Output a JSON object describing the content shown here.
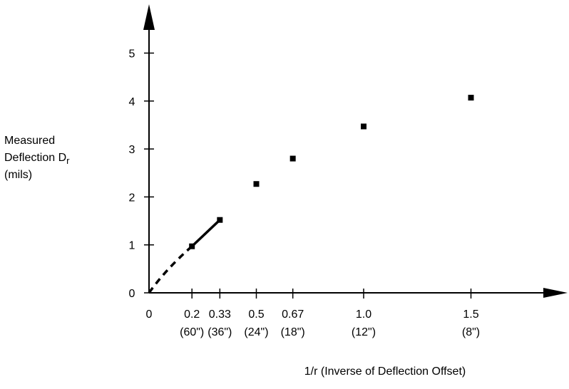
{
  "chart_data": {
    "type": "scatter",
    "title": "",
    "xlabel": "1/r (Inverse of Deflection Offset)",
    "ylabel": {
      "line1": "Measured",
      "line2_main": "Deflection D",
      "line2_sub": "r",
      "line3": "(mils)"
    },
    "xlim": [
      0,
      1.95
    ],
    "ylim": [
      0,
      5.85
    ],
    "x_ticks": [
      {
        "value": 0,
        "label": "0",
        "sublabel": ""
      },
      {
        "value": 0.2,
        "label": "0.2",
        "sublabel": "(60\")"
      },
      {
        "value": 0.33,
        "label": "0.33",
        "sublabel": "(36\")"
      },
      {
        "value": 0.5,
        "label": "0.5",
        "sublabel": "(24\")"
      },
      {
        "value": 0.67,
        "label": "0.67",
        "sublabel": "(18\")"
      },
      {
        "value": 1.0,
        "label": "1.0",
        "sublabel": "(12\")"
      },
      {
        "value": 1.5,
        "label": "1.5",
        "sublabel": "(8\")"
      }
    ],
    "y_ticks": [
      {
        "value": 0,
        "label": "0"
      },
      {
        "value": 1,
        "label": "1"
      },
      {
        "value": 2,
        "label": "2"
      },
      {
        "value": 3,
        "label": "3"
      },
      {
        "value": 4,
        "label": "4"
      },
      {
        "value": 5,
        "label": "5"
      }
    ],
    "points": [
      {
        "x": 0.2,
        "y": 0.97
      },
      {
        "x": 0.33,
        "y": 1.52
      },
      {
        "x": 0.5,
        "y": 2.27
      },
      {
        "x": 0.67,
        "y": 2.8
      },
      {
        "x": 1.0,
        "y": 3.47
      },
      {
        "x": 1.5,
        "y": 4.07
      }
    ],
    "solid_line": [
      {
        "x": 0.2,
        "y": 0.97
      },
      {
        "x": 0.33,
        "y": 1.52
      }
    ],
    "dashed_curve": [
      {
        "x": 0.0,
        "y": 0.0
      },
      {
        "x": 0.08,
        "y": 0.5
      },
      {
        "x": 0.2,
        "y": 0.97
      }
    ],
    "grid": false,
    "legend": "none"
  }
}
